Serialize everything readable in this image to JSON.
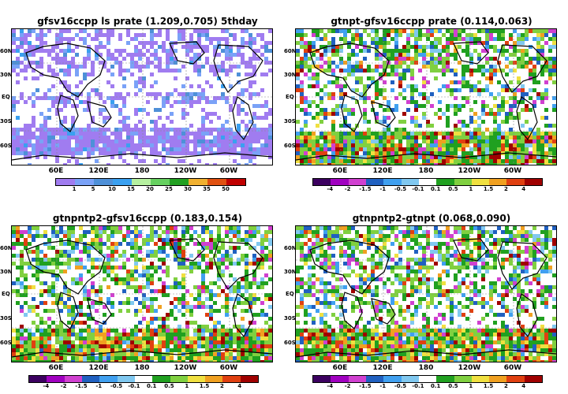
{
  "panels": [
    {
      "title": "gfsv16ccpp  ls prate  (1.209,0.705)  5thday",
      "lat_labels": [
        "60N",
        "30N",
        "EQ",
        "30S",
        "60S"
      ],
      "lon_labels": [
        "60E",
        "120E",
        "180",
        "120W",
        "60W"
      ],
      "colorbar": {
        "labels": [
          "1",
          "5",
          "10",
          "15",
          "20",
          "25",
          "30",
          "35",
          "50"
        ],
        "colors": [
          "#a07cf0",
          "#7aa2f7",
          "#4e90d8",
          "#3aa0f0",
          "#b6f0a0",
          "#66d060",
          "#22a022",
          "#f0b030",
          "#e05010",
          "#c00000"
        ]
      },
      "palette_type": "mean"
    },
    {
      "title": "gtnpt-gfsv16ccpp  prate  (0.114,0.063)",
      "lat_labels": [
        "60N",
        "30N",
        "EQ",
        "30S",
        "60S"
      ],
      "lon_labels": [
        "60E",
        "120E",
        "180",
        "120W",
        "60W"
      ],
      "colorbar": {
        "labels": [
          "-4",
          "-2",
          "-1.5",
          "-1",
          "-0.5",
          "-0.1",
          "0.1",
          "0.5",
          "1",
          "1.5",
          "2",
          "4"
        ],
        "colors": [
          "#3c0060",
          "#a000c0",
          "#d040d0",
          "#2060c0",
          "#40a0f0",
          "#80c8f0",
          "#ffffff",
          "#20a020",
          "#80d040",
          "#f0e040",
          "#f0a020",
          "#e04010",
          "#a00000"
        ]
      },
      "palette_type": "diff"
    },
    {
      "title": "gtnpntp2-gfsv16ccpp  (0.183,0.154)",
      "lat_labels": [
        "60N",
        "30N",
        "EQ",
        "30S",
        "60S"
      ],
      "lon_labels": [
        "60E",
        "120E",
        "180",
        "120W",
        "60W"
      ],
      "colorbar": {
        "labels": [
          "-4",
          "-2",
          "-1.5",
          "-1",
          "-0.5",
          "-0.1",
          "0.1",
          "0.5",
          "1",
          "1.5",
          "2",
          "4"
        ],
        "colors": [
          "#3c0060",
          "#a000c0",
          "#d040d0",
          "#2060c0",
          "#40a0f0",
          "#80c8f0",
          "#ffffff",
          "#20a020",
          "#80d040",
          "#f0e040",
          "#f0a020",
          "#e04010",
          "#a00000"
        ]
      },
      "palette_type": "diff"
    },
    {
      "title": "gtnpntp2-gtnpt  (0.068,0.090)",
      "lat_labels": [
        "60N",
        "30N",
        "EQ",
        "30S",
        "60S"
      ],
      "lon_labels": [
        "60E",
        "120E",
        "180",
        "120W",
        "60W"
      ],
      "colorbar": {
        "labels": [
          "-4",
          "-2",
          "-1.5",
          "-1",
          "-0.5",
          "-0.1",
          "0.1",
          "0.5",
          "1",
          "1.5",
          "2",
          "4"
        ],
        "colors": [
          "#3c0060",
          "#a000c0",
          "#d040d0",
          "#2060c0",
          "#40a0f0",
          "#80c8f0",
          "#ffffff",
          "#20a020",
          "#80d040",
          "#f0e040",
          "#f0a020",
          "#e04010",
          "#a00000"
        ]
      },
      "palette_type": "diff"
    }
  ]
}
